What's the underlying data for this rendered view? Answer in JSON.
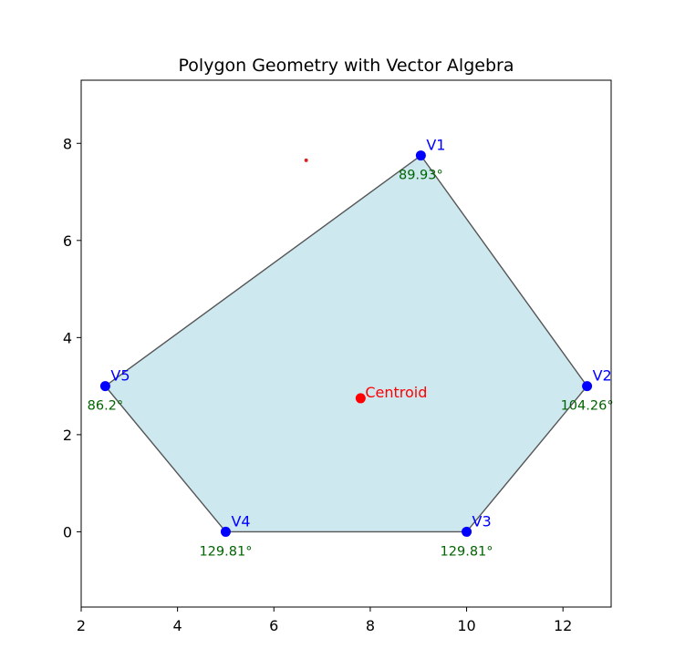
{
  "chart_data": {
    "type": "scatter",
    "title": "Polygon Geometry with Vector Algebra",
    "xlabel": "",
    "ylabel": "",
    "xlim": [
      2,
      13
    ],
    "ylim": [
      -1.55,
      9.3
    ],
    "x_ticks": [
      2,
      4,
      6,
      8,
      10,
      12
    ],
    "y_ticks": [
      0,
      2,
      4,
      6,
      8
    ],
    "grid": false,
    "vertices": [
      {
        "label": "V1",
        "x": 9.05,
        "y": 7.75,
        "angle": "89.93°"
      },
      {
        "label": "V2",
        "x": 12.5,
        "y": 3.0,
        "angle": "104.26°"
      },
      {
        "label": "V3",
        "x": 10.0,
        "y": 0.0,
        "angle": "129.81°"
      },
      {
        "label": "V4",
        "x": 5.0,
        "y": 0.0,
        "angle": "129.81°"
      },
      {
        "label": "V5",
        "x": 2.5,
        "y": 3.0,
        "angle": "86.2°"
      }
    ],
    "centroid": {
      "label": "Centroid",
      "x": 7.8,
      "y": 2.75
    },
    "extra_point": {
      "x": 6.67,
      "y": 7.65
    },
    "colors": {
      "fill": "#add8e6",
      "edge": "#555555",
      "vertex": "#0000ff",
      "centroid": "#ff0000",
      "angle_text": "#006400",
      "extra_point": "#d62728"
    }
  }
}
